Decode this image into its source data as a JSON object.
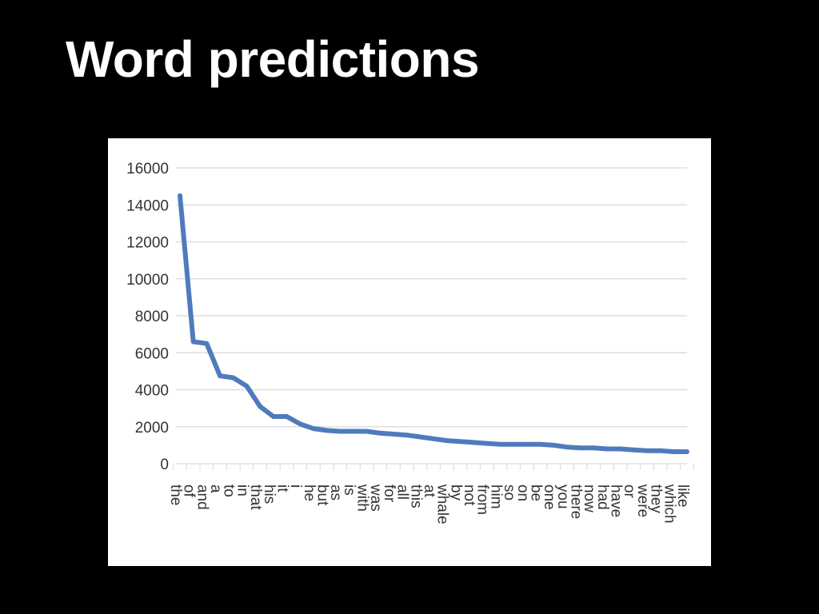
{
  "slide": {
    "title": "Word predictions"
  },
  "colors": {
    "background": "#000000",
    "title": "#ffffff",
    "panel": "#ffffff",
    "series": "#4f7bbd",
    "grid": "#d9d9d9",
    "text": "#333333"
  },
  "chart_data": {
    "type": "line",
    "title": "",
    "xlabel": "",
    "ylabel": "",
    "ylim": [
      0,
      16000
    ],
    "yticks": [
      0,
      2000,
      4000,
      6000,
      8000,
      10000,
      12000,
      14000,
      16000
    ],
    "grid": true,
    "legend": "none",
    "categories": [
      "the",
      "of",
      "and",
      "a",
      "to",
      "in",
      "that",
      "his",
      "it",
      "i",
      "he",
      "but",
      "as",
      "is",
      "with",
      "was",
      "for",
      "all",
      "this",
      "at",
      "whale",
      "by",
      "not",
      "from",
      "him",
      "so",
      "on",
      "be",
      "one",
      "you",
      "there",
      "now",
      "had",
      "have",
      "or",
      "were",
      "they",
      "which",
      "like"
    ],
    "series": [
      {
        "values": [
          14500,
          6600,
          6500,
          4750,
          4650,
          4200,
          3100,
          2550,
          2550,
          2150,
          1900,
          1800,
          1750,
          1750,
          1750,
          1650,
          1600,
          1550,
          1450,
          1350,
          1250,
          1200,
          1150,
          1100,
          1050,
          1050,
          1050,
          1050,
          1000,
          900,
          850,
          850,
          800,
          800,
          750,
          700,
          700,
          650,
          650
        ]
      }
    ]
  }
}
